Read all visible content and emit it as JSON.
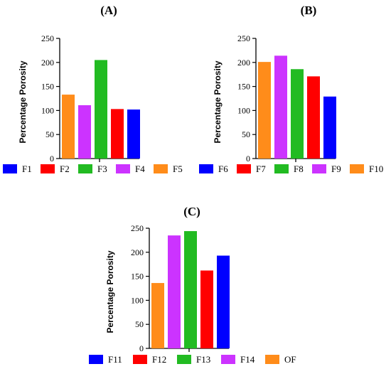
{
  "chart_data": [
    {
      "type": "bar",
      "title": "(A)",
      "ylabel": "Percentage Porosity",
      "ylim": [
        0,
        250
      ],
      "yticks": [
        0,
        50,
        100,
        150,
        200,
        250
      ],
      "legend_position": "bottom",
      "series": [
        {
          "name": "F5",
          "value": 133,
          "color": "#FF8C1A"
        },
        {
          "name": "F4",
          "value": 111,
          "color": "#CC33FF"
        },
        {
          "name": "F3",
          "value": 205,
          "color": "#22BB22"
        },
        {
          "name": "F2",
          "value": 103,
          "color": "#FF0000"
        },
        {
          "name": "F1",
          "value": 102,
          "color": "#0000FF"
        }
      ],
      "legend": [
        "F1",
        "F2",
        "F3",
        "F4",
        "F5"
      ]
    },
    {
      "type": "bar",
      "title": "(B)",
      "ylabel": "Percentage Porosity",
      "ylim": [
        0,
        250
      ],
      "yticks": [
        0,
        50,
        100,
        150,
        200,
        250
      ],
      "legend_position": "bottom",
      "series": [
        {
          "name": "F10",
          "value": 201,
          "color": "#FF8C1A"
        },
        {
          "name": "F9",
          "value": 214,
          "color": "#CC33FF"
        },
        {
          "name": "F8",
          "value": 186,
          "color": "#22BB22"
        },
        {
          "name": "F7",
          "value": 171,
          "color": "#FF0000"
        },
        {
          "name": "F6",
          "value": 129,
          "color": "#0000FF"
        }
      ],
      "legend": [
        "F6",
        "F7",
        "F8",
        "F9",
        "F10"
      ]
    },
    {
      "type": "bar",
      "title": "(C)",
      "ylabel": "Percentage Porosity",
      "ylim": [
        0,
        250
      ],
      "yticks": [
        0,
        50,
        100,
        150,
        200,
        250
      ],
      "legend_position": "bottom",
      "series": [
        {
          "name": "OF",
          "value": 136,
          "color": "#FF8C1A"
        },
        {
          "name": "F14",
          "value": 235,
          "color": "#CC33FF"
        },
        {
          "name": "F13",
          "value": 244,
          "color": "#22BB22"
        },
        {
          "name": "F12",
          "value": 162,
          "color": "#FF0000"
        },
        {
          "name": "F11",
          "value": 193,
          "color": "#0000FF"
        }
      ],
      "legend": [
        "F11",
        "F12",
        "F13",
        "F14",
        "OF"
      ]
    }
  ]
}
